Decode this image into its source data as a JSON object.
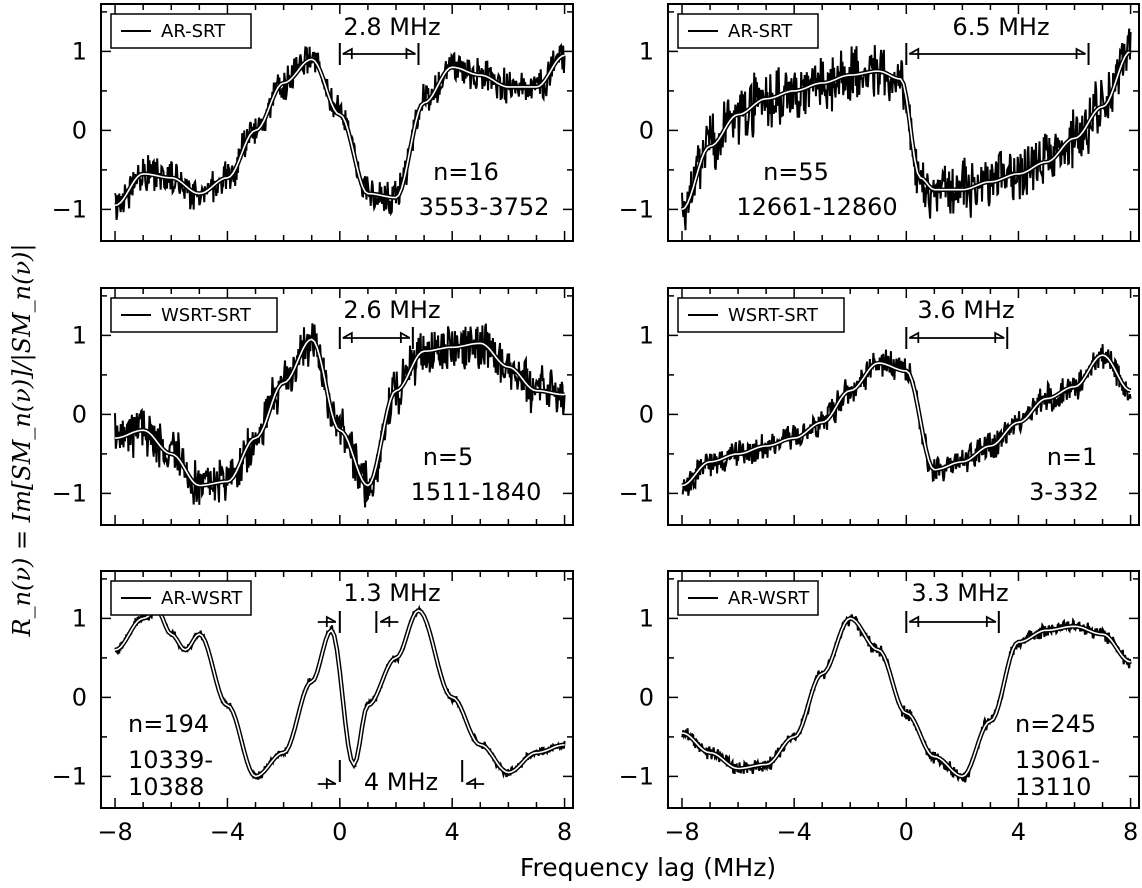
{
  "figure": {
    "xlabel": "Frequency lag (MHz)",
    "ylabel": "R_n(ν) = Im[SM_n(ν)]/|SM_n(ν)|"
  },
  "chart_data": [
    {
      "type": "line",
      "panel": "top-left",
      "legend": "AR-SRT",
      "legend_placement": "top-left",
      "xlim": [
        -8.5,
        8.3
      ],
      "ylim": [
        -1.4,
        1.6
      ],
      "xticks": [
        -8,
        -4,
        0,
        4,
        8
      ],
      "yticks": [
        -1,
        0,
        1
      ],
      "n_label": "n=16",
      "range_label": "3553-3752",
      "marker_label": "2.8 MHz",
      "marker_range": [
        0,
        2.8
      ],
      "smooth": {
        "x": [
          -8,
          -7,
          -6,
          -5,
          -4,
          -3,
          -2,
          -1,
          0,
          1,
          2,
          3,
          4,
          5,
          6,
          7,
          8
        ],
        "y": [
          -0.95,
          -0.55,
          -0.6,
          -0.8,
          -0.6,
          0.0,
          0.6,
          0.9,
          0.2,
          -0.8,
          -0.85,
          0.35,
          0.8,
          0.7,
          0.55,
          0.55,
          0.95
        ]
      },
      "noise_amp": 0.18
    },
    {
      "type": "line",
      "panel": "top-right",
      "legend": "AR-SRT",
      "legend_placement": "top-left",
      "xlim": [
        -8.5,
        8.3
      ],
      "ylim": [
        -1.4,
        1.6
      ],
      "xticks": [
        -8,
        -4,
        0,
        4,
        8
      ],
      "yticks": [
        -1,
        0,
        1
      ],
      "n_label": "n=55",
      "range_label": "12661-12860",
      "marker_label": "6.5 MHz",
      "marker_range": [
        0,
        6.5
      ],
      "smooth": {
        "x": [
          -8,
          -7,
          -6,
          -5,
          -4,
          -3,
          -2,
          -1,
          -0.2,
          0.5,
          1,
          2,
          3,
          4,
          5,
          6,
          7,
          8
        ],
        "y": [
          -1.0,
          -0.2,
          0.2,
          0.4,
          0.5,
          0.6,
          0.7,
          0.75,
          0.65,
          -0.6,
          -0.75,
          -0.75,
          -0.65,
          -0.55,
          -0.4,
          -0.1,
          0.3,
          1.0
        ]
      },
      "noise_amp": 0.3
    },
    {
      "type": "line",
      "panel": "middle-left",
      "legend": "WSRT-SRT",
      "legend_placement": "top-left",
      "xlim": [
        -8.5,
        8.3
      ],
      "ylim": [
        -1.4,
        1.6
      ],
      "xticks": [
        -8,
        -4,
        0,
        4,
        8
      ],
      "yticks": [
        -1,
        0,
        1
      ],
      "n_label": "n=5",
      "range_label": "1511-1840",
      "marker_label": "2.6 MHz",
      "marker_range": [
        0,
        2.6
      ],
      "smooth": {
        "x": [
          -8,
          -7,
          -6,
          -5,
          -4,
          -3,
          -2,
          -1,
          0,
          1,
          2,
          3,
          4,
          5,
          6,
          7,
          8
        ],
        "y": [
          -0.3,
          -0.2,
          -0.5,
          -0.9,
          -0.85,
          -0.3,
          0.4,
          0.95,
          -0.2,
          -0.9,
          0.3,
          0.8,
          0.85,
          0.9,
          0.6,
          0.3,
          0.25
        ]
      },
      "noise_amp": 0.25
    },
    {
      "type": "line",
      "panel": "middle-right",
      "legend": "WSRT-SRT",
      "legend_placement": "top-left",
      "xlim": [
        -8.5,
        8.3
      ],
      "ylim": [
        -1.4,
        1.6
      ],
      "xticks": [
        -8,
        -4,
        0,
        4,
        8
      ],
      "yticks": [
        -1,
        0,
        1
      ],
      "n_label": "n=1",
      "range_label": "3-332",
      "marker_label": "3.6 MHz",
      "marker_range": [
        0,
        3.6
      ],
      "smooth": {
        "x": [
          -8,
          -7,
          -6,
          -5,
          -4,
          -3,
          -2,
          -1,
          0,
          1,
          2,
          3,
          4,
          5,
          6,
          7,
          8
        ],
        "y": [
          -0.9,
          -0.6,
          -0.5,
          -0.4,
          -0.3,
          -0.1,
          0.3,
          0.65,
          0.55,
          -0.7,
          -0.6,
          -0.4,
          -0.1,
          0.2,
          0.35,
          0.75,
          0.3
        ]
      },
      "noise_amp": 0.15
    },
    {
      "type": "line",
      "panel": "bottom-left",
      "legend": "AR-WSRT",
      "legend_placement": "top-left",
      "xlim": [
        -8.5,
        8.3
      ],
      "ylim": [
        -1.4,
        1.6
      ],
      "xticks": [
        -8,
        -4,
        0,
        4,
        8
      ],
      "yticks": [
        -1,
        0,
        1
      ],
      "n_label": "n=194",
      "range_label_lines": [
        "10339-",
        "10388"
      ],
      "marker_label": "1.3 MHz",
      "marker_range": [
        0,
        1.3
      ],
      "marker_label_2": "4 MHz",
      "marker_range_2": [
        0,
        4
      ],
      "smooth": {
        "x": [
          -8,
          -7,
          -6.5,
          -6,
          -5.5,
          -5,
          -4,
          -3,
          -2,
          -1,
          -0.3,
          0.5,
          1,
          2,
          2.8,
          4,
          5,
          6,
          7,
          8
        ],
        "y": [
          0.6,
          1.0,
          1.1,
          0.8,
          0.6,
          0.8,
          -0.1,
          -1.0,
          -0.7,
          0.2,
          0.85,
          -0.85,
          -0.1,
          0.5,
          1.1,
          0.0,
          -0.6,
          -0.95,
          -0.7,
          -0.6
        ]
      },
      "noise_amp": 0.05
    },
    {
      "type": "line",
      "panel": "bottom-right",
      "legend": "AR-WSRT",
      "legend_placement": "top-left",
      "xlim": [
        -8.5,
        8.3
      ],
      "ylim": [
        -1.4,
        1.6
      ],
      "xticks": [
        -8,
        -4,
        0,
        4,
        8
      ],
      "yticks": [
        -1,
        0,
        1
      ],
      "n_label": "n=245",
      "range_label_lines": [
        "13061-",
        "13110"
      ],
      "marker_label": "3.3 MHz",
      "marker_range": [
        0,
        3.3
      ],
      "smooth": {
        "x": [
          -8,
          -7,
          -6,
          -5,
          -4,
          -3,
          -2,
          -1,
          0,
          1,
          2,
          3,
          4,
          5,
          6,
          7,
          8
        ],
        "y": [
          -0.45,
          -0.7,
          -0.9,
          -0.85,
          -0.5,
          0.3,
          1.0,
          0.6,
          -0.2,
          -0.75,
          -1.0,
          -0.3,
          0.7,
          0.85,
          0.9,
          0.8,
          0.45
        ]
      },
      "noise_amp": 0.07
    }
  ]
}
